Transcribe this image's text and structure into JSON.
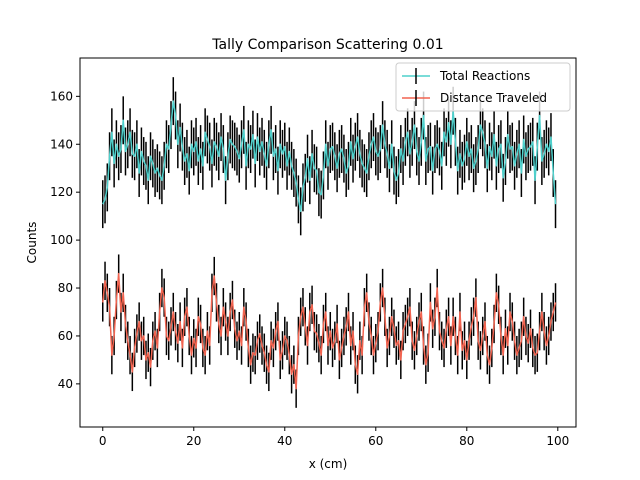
{
  "chart_data": {
    "type": "line",
    "title": "Tally Comparison Scattering 0.01",
    "xlabel": "x (cm)",
    "ylabel": "Counts",
    "xlim": [
      -5,
      104
    ],
    "ylim": [
      22,
      176
    ],
    "xticks": [
      0,
      20,
      40,
      60,
      80,
      100
    ],
    "yticks": [
      40,
      60,
      80,
      100,
      120,
      140,
      160
    ],
    "grid": false,
    "legend_position": "top-right",
    "series": [
      {
        "name": "Total Reactions",
        "color": "#4fd0cc",
        "x": [
          0,
          0.5,
          1,
          1.5,
          2,
          2.5,
          3,
          3.5,
          4,
          4.5,
          5,
          5.5,
          6,
          6.5,
          7,
          7.5,
          8,
          8.5,
          9,
          9.5,
          10,
          10.5,
          11,
          11.5,
          12,
          12.5,
          13,
          13.5,
          14,
          14.5,
          15,
          15.5,
          16,
          16.5,
          17,
          17.5,
          18,
          18.5,
          19,
          19.5,
          20,
          20.5,
          21,
          21.5,
          22,
          22.5,
          23,
          23.5,
          24,
          24.5,
          25,
          25.5,
          26,
          26.5,
          27,
          27.5,
          28,
          28.5,
          29,
          29.5,
          30,
          30.5,
          31,
          31.5,
          32,
          32.5,
          33,
          33.5,
          34,
          34.5,
          35,
          35.5,
          36,
          36.5,
          37,
          37.5,
          38,
          38.5,
          39,
          39.5,
          40,
          40.5,
          41,
          41.5,
          42,
          42.5,
          43,
          43.5,
          44,
          44.5,
          45,
          45.5,
          46,
          46.5,
          47,
          47.5,
          48,
          48.5,
          49,
          49.5,
          50,
          50.5,
          51,
          51.5,
          52,
          52.5,
          53,
          53.5,
          54,
          54.5,
          55,
          55.5,
          56,
          56.5,
          57,
          57.5,
          58,
          58.5,
          59,
          59.5,
          60,
          60.5,
          61,
          61.5,
          62,
          62.5,
          63,
          63.5,
          64,
          64.5,
          65,
          65.5,
          66,
          66.5,
          67,
          67.5,
          68,
          68.5,
          69,
          69.5,
          70,
          70.5,
          71,
          71.5,
          72,
          72.5,
          73,
          73.5,
          74,
          74.5,
          75,
          75.5,
          76,
          76.5,
          77,
          77.5,
          78,
          78.5,
          79,
          79.5,
          80,
          80.5,
          81,
          81.5,
          82,
          82.5,
          83,
          83.5,
          84,
          84.5,
          85,
          85.5,
          86,
          86.5,
          87,
          87.5,
          88,
          88.5,
          89,
          89.5,
          90,
          90.5,
          91,
          91.5,
          92,
          92.5,
          93,
          93.5,
          94,
          94.5,
          95,
          95.5,
          96,
          96.5,
          97,
          97.5,
          98,
          98.5,
          99,
          99.5
        ],
        "values": [
          115,
          117,
          122,
          135,
          145,
          132,
          140,
          135,
          138,
          150,
          137,
          140,
          145,
          136,
          135,
          140,
          128,
          137,
          133,
          131,
          125,
          135,
          132,
          128,
          130,
          127,
          125,
          131,
          140,
          138,
          148,
          158,
          152,
          140,
          147,
          139,
          133,
          136,
          129,
          140,
          137,
          141,
          133,
          138,
          131,
          145,
          142,
          139,
          132,
          141,
          139,
          135,
          143,
          138,
          125,
          135,
          142,
          140,
          139,
          137,
          134,
          140,
          146,
          131,
          140,
          138,
          144,
          132,
          143,
          137,
          141,
          136,
          131,
          140,
          146,
          135,
          138,
          129,
          140,
          136,
          139,
          131,
          137,
          131,
          128,
          124,
          117,
          112,
          122,
          126,
          134,
          125,
          136,
          130,
          129,
          120,
          119,
          127,
          140,
          131,
          138,
          139,
          135,
          130,
          136,
          138,
          134,
          128,
          131,
          141,
          134,
          139,
          143,
          136,
          132,
          130,
          128,
          135,
          140,
          143,
          137,
          135,
          138,
          148,
          140,
          136,
          130,
          140,
          129,
          125,
          128,
          138,
          133,
          141,
          145,
          136,
          141,
          148,
          137,
          133,
          141,
          152,
          133,
          138,
          139,
          129,
          138,
          140,
          137,
          131,
          145,
          141,
          149,
          140,
          154,
          141,
          129,
          136,
          131,
          134,
          141,
          135,
          138,
          130,
          133,
          138,
          148,
          145,
          140,
          130,
          139,
          135,
          144,
          131,
          138,
          140,
          126,
          133,
          144,
          138,
          139,
          131,
          136,
          140,
          128,
          142,
          135,
          138,
          139,
          141,
          125,
          139,
          152,
          133,
          136,
          140,
          137,
          143,
          128,
          115
        ],
        "errors": [
          10,
          10,
          10,
          10,
          10,
          10,
          10,
          10,
          10,
          10,
          10,
          10,
          10,
          10,
          10,
          10,
          10,
          10,
          10,
          10,
          10,
          10,
          10,
          10,
          10,
          10,
          10,
          10,
          10,
          10,
          10,
          10,
          10,
          10,
          10,
          10,
          10,
          10,
          10,
          10,
          10,
          10,
          10,
          10,
          10,
          10,
          10,
          10,
          10,
          10,
          10,
          10,
          10,
          10,
          10,
          10,
          10,
          10,
          10,
          10,
          10,
          10,
          10,
          10,
          10,
          10,
          10,
          10,
          10,
          10,
          10,
          10,
          10,
          10,
          10,
          10,
          10,
          10,
          10,
          10,
          10,
          10,
          10,
          10,
          10,
          10,
          10,
          10,
          10,
          10,
          10,
          10,
          10,
          10,
          10,
          10,
          10,
          10,
          10,
          10,
          10,
          10,
          10,
          10,
          10,
          10,
          10,
          10,
          10,
          10,
          10,
          10,
          10,
          10,
          10,
          10,
          10,
          10,
          10,
          10,
          10,
          10,
          10,
          10,
          10,
          10,
          10,
          10,
          10,
          10,
          10,
          10,
          10,
          10,
          10,
          10,
          10,
          10,
          10,
          10,
          10,
          10,
          10,
          10,
          10,
          10,
          10,
          10,
          10,
          10,
          10,
          10,
          10,
          10,
          10,
          10,
          10,
          10,
          10,
          10,
          10,
          10,
          10,
          10,
          10,
          10,
          10,
          10,
          10,
          10,
          10,
          10,
          10,
          10,
          10,
          10,
          10,
          10,
          10,
          10,
          10,
          10,
          10,
          10,
          10,
          10,
          10,
          10,
          10,
          10,
          10,
          10,
          10,
          10,
          10,
          10,
          10,
          10,
          10,
          10
        ]
      },
      {
        "name": "Distance Traveled",
        "color": "#f26450",
        "x": [
          0,
          0.5,
          1,
          1.5,
          2,
          2.5,
          3,
          3.5,
          4,
          4.5,
          5,
          5.5,
          6,
          6.5,
          7,
          7.5,
          8,
          8.5,
          9,
          9.5,
          10,
          10.5,
          11,
          11.5,
          12,
          12.5,
          13,
          13.5,
          14,
          14.5,
          15,
          15.5,
          16,
          16.5,
          17,
          17.5,
          18,
          18.5,
          19,
          19.5,
          20,
          20.5,
          21,
          21.5,
          22,
          22.5,
          23,
          23.5,
          24,
          24.5,
          25,
          25.5,
          26,
          26.5,
          27,
          27.5,
          28,
          28.5,
          29,
          29.5,
          30,
          30.5,
          31,
          31.5,
          32,
          32.5,
          33,
          33.5,
          34,
          34.5,
          35,
          35.5,
          36,
          36.5,
          37,
          37.5,
          38,
          38.5,
          39,
          39.5,
          40,
          40.5,
          41,
          41.5,
          42,
          42.5,
          43,
          43.5,
          44,
          44.5,
          45,
          45.5,
          46,
          46.5,
          47,
          47.5,
          48,
          48.5,
          49,
          49.5,
          50,
          50.5,
          51,
          51.5,
          52,
          52.5,
          53,
          53.5,
          54,
          54.5,
          55,
          55.5,
          56,
          56.5,
          57,
          57.5,
          58,
          58.5,
          59,
          59.5,
          60,
          60.5,
          61,
          61.5,
          62,
          62.5,
          63,
          63.5,
          64,
          64.5,
          65,
          65.5,
          66,
          66.5,
          67,
          67.5,
          68,
          68.5,
          69,
          69.5,
          70,
          70.5,
          71,
          71.5,
          72,
          72.5,
          73,
          73.5,
          74,
          74.5,
          75,
          75.5,
          76,
          76.5,
          77,
          77.5,
          78,
          78.5,
          79,
          79.5,
          80,
          80.5,
          81,
          81.5,
          82,
          82.5,
          83,
          83.5,
          84,
          84.5,
          85,
          85.5,
          86,
          86.5,
          87,
          87.5,
          88,
          88.5,
          89,
          89.5,
          90,
          90.5,
          91,
          91.5,
          92,
          92.5,
          93,
          93.5,
          94,
          94.5,
          95,
          95.5,
          96,
          96.5,
          97,
          97.5,
          98,
          98.5,
          99,
          99.5
        ],
        "values": [
          74,
          83,
          78,
          72,
          52,
          60,
          75,
          86,
          70,
          78,
          65,
          58,
          52,
          45,
          55,
          61,
          66,
          58,
          60,
          50,
          53,
          47,
          58,
          62,
          55,
          70,
          80,
          76,
          60,
          58,
          64,
          70,
          62,
          57,
          66,
          55,
          68,
          72,
          60,
          52,
          59,
          55,
          68,
          65,
          55,
          52,
          62,
          56,
          78,
          85,
          74,
          65,
          60,
          72,
          66,
          60,
          70,
          75,
          63,
          58,
          62,
          56,
          72,
          66,
          55,
          48,
          53,
          52,
          58,
          61,
          56,
          53,
          48,
          45,
          58,
          55,
          62,
          66,
          50,
          54,
          60,
          58,
          52,
          44,
          48,
          38,
          60,
          68,
          72,
          64,
          56,
          70,
          73,
          62,
          61,
          57,
          52,
          65,
          70,
          56,
          62,
          55,
          58,
          65,
          50,
          55,
          60,
          64,
          70,
          56,
          62,
          48,
          44,
          58,
          52,
          72,
          78,
          66,
          60,
          52,
          57,
          62,
          74,
          80,
          68,
          55,
          60,
          68,
          63,
          56,
          58,
          50,
          62,
          65,
          68,
          72,
          58,
          54,
          60,
          66,
          70,
          56,
          48,
          53,
          74,
          63,
          68,
          80,
          62,
          58,
          55,
          63,
          68,
          56,
          68,
          60,
          52,
          70,
          54,
          58,
          50,
          58,
          64,
          68,
          76,
          58,
          54,
          60,
          66,
          52,
          48,
          55,
          65,
          78,
          73,
          60,
          52,
          63,
          56,
          70,
          66,
          58,
          52,
          55,
          58,
          68,
          60,
          57,
          63,
          55,
          52,
          53,
          62,
          70,
          62,
          56,
          60,
          66,
          70,
          74
        ],
        "errors": [
          8,
          8,
          8,
          8,
          8,
          8,
          8,
          8,
          8,
          8,
          8,
          8,
          8,
          8,
          8,
          8,
          8,
          8,
          8,
          8,
          8,
          8,
          8,
          8,
          8,
          8,
          8,
          8,
          8,
          8,
          8,
          8,
          8,
          8,
          8,
          8,
          8,
          8,
          8,
          8,
          8,
          8,
          8,
          8,
          8,
          8,
          8,
          8,
          8,
          8,
          8,
          8,
          8,
          8,
          8,
          8,
          8,
          8,
          8,
          8,
          8,
          8,
          8,
          8,
          8,
          8,
          8,
          8,
          8,
          8,
          8,
          8,
          8,
          8,
          8,
          8,
          8,
          8,
          8,
          8,
          8,
          8,
          8,
          8,
          8,
          8,
          8,
          8,
          8,
          8,
          8,
          8,
          8,
          8,
          8,
          8,
          8,
          8,
          8,
          8,
          8,
          8,
          8,
          8,
          8,
          8,
          8,
          8,
          8,
          8,
          8,
          8,
          8,
          8,
          8,
          8,
          8,
          8,
          8,
          8,
          8,
          8,
          8,
          8,
          8,
          8,
          8,
          8,
          8,
          8,
          8,
          8,
          8,
          8,
          8,
          8,
          8,
          8,
          8,
          8,
          8,
          8,
          8,
          8,
          8,
          8,
          8,
          8,
          8,
          8,
          8,
          8,
          8,
          8,
          8,
          8,
          8,
          8,
          8,
          8,
          8,
          8,
          8,
          8,
          8,
          8,
          8,
          8,
          8,
          8,
          8,
          8,
          8,
          8,
          8,
          8,
          8,
          8,
          8,
          8,
          8,
          8,
          8,
          8,
          8,
          8,
          8,
          8,
          8,
          8,
          8,
          8,
          8,
          8,
          8,
          8,
          8,
          8,
          8,
          8
        ]
      }
    ]
  }
}
